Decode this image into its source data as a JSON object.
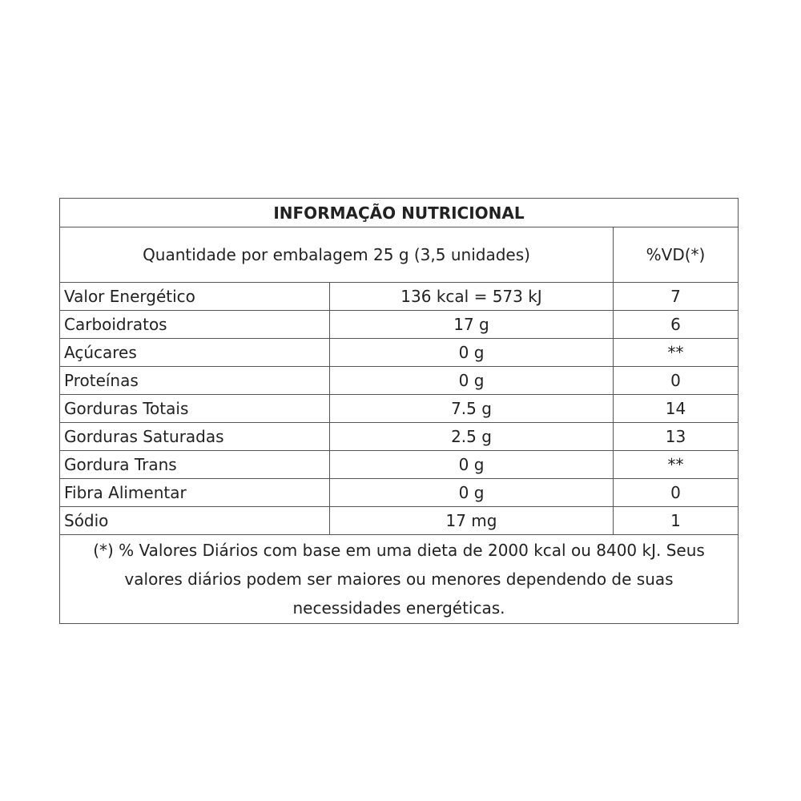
{
  "title": "INFORMAÇÃO NUTRICIONAL",
  "serving": "Quantidade por embalagem 25 g (3,5 unidades)",
  "vd_header": "%VD(*)",
  "rows": [
    {
      "name": "Valor Energético",
      "amount": "136 kcal = 573 kJ",
      "vd": "7"
    },
    {
      "name": "Carboidratos",
      "amount": "17 g",
      "vd": "6"
    },
    {
      "name": "Açúcares",
      "amount": "0 g",
      "vd": "**"
    },
    {
      "name": "Proteínas",
      "amount": "0 g",
      "vd": "0"
    },
    {
      "name": "Gorduras Totais",
      "amount": "7.5 g",
      "vd": "14"
    },
    {
      "name": "Gorduras Saturadas",
      "amount": "2.5 g",
      "vd": "13"
    },
    {
      "name": "Gordura Trans",
      "amount": "0 g",
      "vd": "**"
    },
    {
      "name": "Fibra Alimentar",
      "amount": "0 g",
      "vd": "0"
    },
    {
      "name": "Sódio",
      "amount": "17 mg",
      "vd": "1"
    }
  ],
  "footnote": "(*) % Valores Diários com base em uma dieta de 2000 kcal ou 8400 kJ. Seus valores diários podem ser maiores ou menores dependendo de suas necessidades energéticas."
}
